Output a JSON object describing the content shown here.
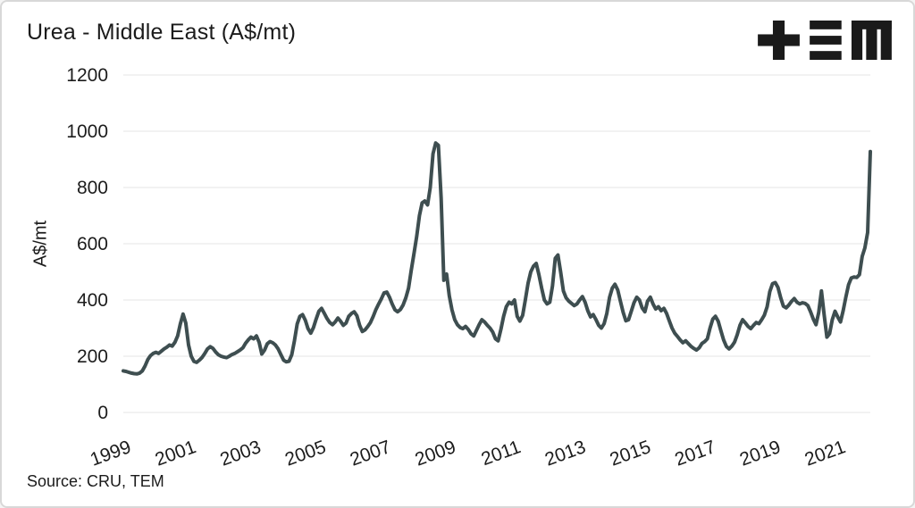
{
  "header": {
    "title": "Urea - Middle East (A$/mt)",
    "logo_name": "TEM"
  },
  "source": {
    "label": "Source: CRU, TEM"
  },
  "colors": {
    "line": "#3e4e50",
    "grid": "#e4e4e4",
    "text": "#1c1c1c",
    "logo": "#1a1a1a",
    "card_border": "#d8d8d8",
    "background": "#ffffff"
  },
  "chart_data": {
    "type": "line",
    "title": "Urea - Middle East (A$/mt)",
    "xlabel": "",
    "ylabel": "A$/mt",
    "ylim": [
      0,
      1200
    ],
    "yticks": [
      0,
      200,
      400,
      600,
      800,
      1000,
      1200
    ],
    "xticks": [
      "1999",
      "2001",
      "2003",
      "2005",
      "2007",
      "2009",
      "2011",
      "2013",
      "2015",
      "2017",
      "2019",
      "2021"
    ],
    "x_range_years": [
      1999.0,
      2022.0
    ],
    "grid": "horizontal-only",
    "legend": "none",
    "annotations": [],
    "series": [
      {
        "name": "Urea - Middle East price",
        "unit": "A$/mt",
        "frequency": "monthly",
        "start_year": 1999,
        "values": [
          148,
          146,
          143,
          140,
          138,
          137,
          140,
          148,
          165,
          188,
          202,
          210,
          214,
          210,
          218,
          226,
          232,
          240,
          236,
          250,
          272,
          315,
          350,
          318,
          240,
          200,
          182,
          178,
          186,
          196,
          210,
          226,
          234,
          228,
          215,
          205,
          200,
          197,
          195,
          200,
          206,
          210,
          216,
          222,
          230,
          246,
          258,
          268,
          262,
          272,
          250,
          208,
          222,
          244,
          252,
          248,
          240,
          226,
          206,
          186,
          180,
          182,
          205,
          255,
          315,
          342,
          348,
          328,
          298,
          282,
          302,
          332,
          360,
          370,
          352,
          334,
          320,
          312,
          322,
          336,
          324,
          310,
          318,
          342,
          352,
          358,
          344,
          310,
          288,
          294,
          306,
          320,
          342,
          366,
          386,
          404,
          425,
          428,
          410,
          385,
          365,
          358,
          366,
          382,
          408,
          442,
          505,
          565,
          625,
          700,
          745,
          752,
          738,
          800,
          920,
          958,
          950,
          762,
          470,
          492,
          415,
          365,
          330,
          312,
          302,
          298,
          306,
          295,
          280,
          272,
          292,
          312,
          330,
          322,
          310,
          300,
          286,
          262,
          255,
          296,
          342,
          376,
          392,
          386,
          400,
          342,
          325,
          345,
          400,
          460,
          500,
          520,
          530,
          490,
          442,
          400,
          386,
          392,
          450,
          548,
          560,
          500,
          432,
          408,
          396,
          388,
          380,
          386,
          400,
          412,
          392,
          362,
          340,
          348,
          330,
          310,
          300,
          316,
          352,
          410,
          442,
          456,
          436,
          396,
          356,
          326,
          330,
          360,
          390,
          410,
          400,
          372,
          358,
          396,
          410,
          386,
          368,
          376,
          362,
          370,
          352,
          326,
          300,
          282,
          270,
          258,
          248,
          255,
          245,
          235,
          228,
          222,
          230,
          245,
          252,
          262,
          300,
          332,
          342,
          324,
          290,
          258,
          235,
          226,
          236,
          250,
          276,
          310,
          330,
          318,
          306,
          298,
          310,
          320,
          316,
          330,
          346,
          376,
          430,
          458,
          462,
          445,
          408,
          378,
          372,
          382,
          395,
          405,
          392,
          386,
          390,
          388,
          380,
          358,
          332,
          312,
          355,
          432,
          348,
          268,
          280,
          330,
          360,
          340,
          322,
          362,
          410,
          455,
          478,
          482,
          480,
          490,
          555,
          585,
          640,
          928
        ]
      }
    ]
  }
}
